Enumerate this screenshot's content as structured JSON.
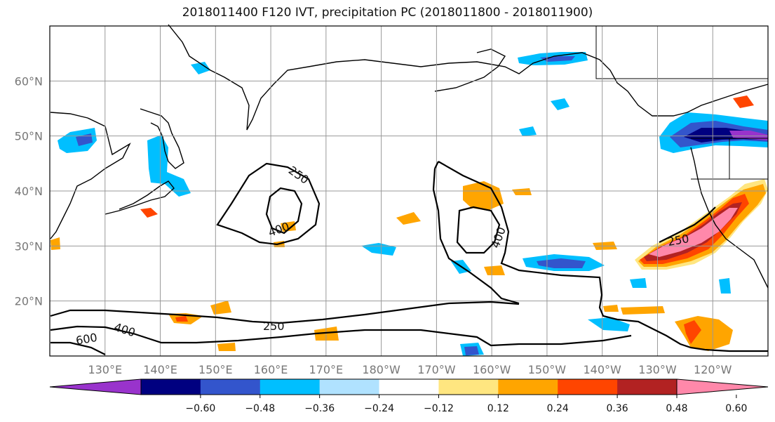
{
  "title": "2018011400 F120 IVT, precipitation PC (2018011800 - 2018011900)",
  "map": {
    "lat_labels": [
      "60°N",
      "50°N",
      "40°N",
      "30°N",
      "20°N"
    ],
    "lon_labels": [
      "130°E",
      "140°E",
      "150°E",
      "160°E",
      "170°E",
      "180°W",
      "170°W",
      "160°W",
      "150°W",
      "140°W",
      "130°W",
      "120°W"
    ],
    "extent": {
      "lon_min": 120,
      "lon_max": 250,
      "lat_min": 10,
      "lat_max": 70
    },
    "gridlines": true,
    "ivt_contour_levels": [
      250,
      400,
      600
    ],
    "contour_labels": [
      "250",
      "400",
      "400",
      "250",
      "400",
      "600",
      "250"
    ]
  },
  "colorbar": {
    "ticks": [
      "−0.60",
      "−0.48",
      "−0.36",
      "−0.24",
      "−0.12",
      "0.12",
      "0.24",
      "0.36",
      "0.48",
      "0.60"
    ],
    "colors": [
      "#9933cc",
      "#000080",
      "#3355cc",
      "#00bfff",
      "#b0e2ff",
      "#ffffff",
      "#ffe680",
      "#ffa500",
      "#ff4500",
      "#b22222",
      "#ff88aa"
    ],
    "extend": "both"
  },
  "shading_colors": {
    "pos1": "#ffe680",
    "pos2": "#ffa500",
    "pos3": "#ff4500",
    "pos4": "#b22222",
    "pos5": "#ff88aa",
    "neg1": "#b0e2ff",
    "neg2": "#00bfff",
    "neg3": "#3355cc",
    "neg4": "#000080",
    "neg5": "#9933cc"
  }
}
